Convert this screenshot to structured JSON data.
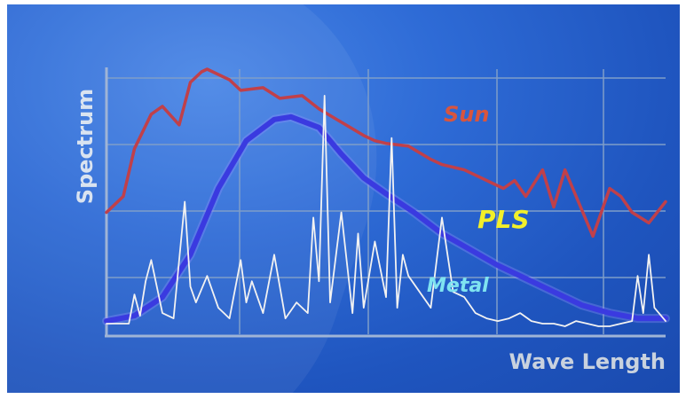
{
  "chart_data": {
    "type": "line",
    "title": "",
    "xlabel": "Wave Length",
    "ylabel": "Spectrum",
    "xlim": [
      0,
      100
    ],
    "ylim": [
      0,
      100
    ],
    "grid": true,
    "legend": "inline labels",
    "series": [
      {
        "name": "Sun",
        "color": "#c0404a",
        "x": [
          0,
          3,
          5,
          8,
          10,
          13,
          15,
          17,
          18,
          20,
          22,
          24,
          28,
          31,
          35,
          38,
          42,
          46,
          48,
          50,
          54,
          58,
          60,
          64,
          68,
          71,
          73,
          75,
          78,
          80,
          82,
          85,
          87,
          90,
          92,
          94,
          97,
          100
        ],
        "values": [
          46,
          52,
          70,
          83,
          86,
          79,
          95,
          99,
          100,
          98,
          96,
          92,
          93,
          89,
          90,
          85,
          80,
          75,
          73,
          72,
          71,
          66,
          64,
          62,
          58,
          55,
          58,
          52,
          62,
          48,
          62,
          47,
          37,
          55,
          52,
          46,
          42,
          50
        ]
      },
      {
        "name": "PLS",
        "color": "#3a3ae0",
        "x": [
          0,
          5,
          10,
          15,
          20,
          25,
          30,
          33,
          38,
          42,
          46,
          50,
          55,
          60,
          65,
          70,
          75,
          80,
          85,
          90,
          95,
          100
        ],
        "values": [
          5,
          7,
          14,
          30,
          55,
          73,
          81,
          82,
          78,
          68,
          59,
          53,
          46,
          38,
          32,
          26,
          21,
          16,
          11,
          8,
          6,
          6
        ]
      },
      {
        "name": "Metal",
        "color": "#f2f2f2",
        "x": [
          0,
          4,
          5,
          6,
          7,
          8,
          10,
          12,
          14,
          15,
          16,
          18,
          20,
          22,
          24,
          25,
          26,
          28,
          30,
          32,
          34,
          36,
          37,
          38,
          39,
          40,
          42,
          44,
          45,
          46,
          48,
          50,
          51,
          52,
          53,
          54,
          56,
          58,
          60,
          62,
          64,
          66,
          68,
          70,
          72,
          74,
          76,
          78,
          80,
          82,
          84,
          86,
          88,
          90,
          92,
          94,
          95,
          96,
          97,
          98,
          100
        ],
        "values": [
          4,
          4,
          15,
          7,
          20,
          28,
          8,
          6,
          50,
          18,
          12,
          22,
          10,
          6,
          28,
          12,
          20,
          8,
          30,
          6,
          12,
          8,
          44,
          20,
          90,
          12,
          46,
          8,
          38,
          10,
          35,
          14,
          74,
          10,
          30,
          22,
          16,
          10,
          44,
          16,
          14,
          8,
          6,
          5,
          6,
          8,
          5,
          4,
          4,
          3,
          5,
          4,
          3,
          3,
          4,
          5,
          22,
          8,
          30,
          10,
          5
        ]
      }
    ]
  }
}
